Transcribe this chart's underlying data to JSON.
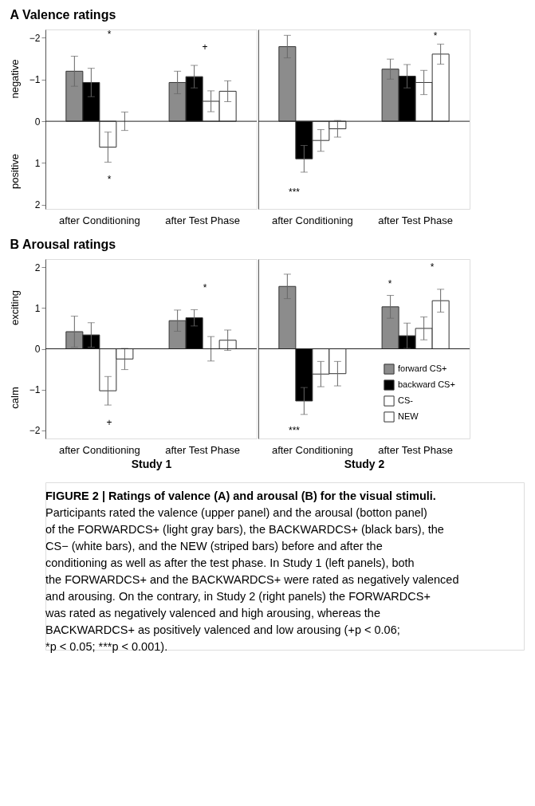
{
  "chart_data": [
    {
      "type": "bar",
      "title": "A Valence ratings",
      "categories": [
        "after Conditioning",
        "after Test Phase"
      ],
      "series": [
        {
          "color": "#8c8c8c",
          "values": [
            -1.2,
            -0.93
          ],
          "errors": [
            0.36,
            0.27
          ]
        },
        {
          "color": "#000000",
          "values": [
            -0.93,
            -1.07
          ],
          "errors": [
            0.34,
            0.27
          ]
        },
        {
          "color": "#ffffff",
          "values": [
            0.62,
            -0.48
          ],
          "errors": [
            0.36,
            0.25
          ]
        },
        {
          "color": "#ffffff",
          "values": [
            0.0,
            -0.72
          ],
          "errors": [
            0.22,
            0.25
          ]
        }
      ],
      "ylim": [
        2.1,
        -2.2
      ],
      "yticks": [
        -2,
        -1,
        0,
        1,
        2
      ],
      "ref_lines": [
        {
          "axis": "y",
          "value": 0
        }
      ],
      "annotations": [
        "negative",
        "positive",
        "*",
        "*",
        "+"
      ]
    },
    {
      "type": "bar",
      "categories": [
        "after Conditioning",
        "after Test Phase"
      ],
      "series": [
        {
          "color": "#8c8c8c",
          "values": [
            -1.79,
            -1.25
          ],
          "errors": [
            0.27,
            0.24
          ]
        },
        {
          "color": "#000000",
          "values": [
            0.9,
            -1.08
          ],
          "errors": [
            0.32,
            0.28
          ]
        },
        {
          "color": "#ffffff",
          "values": [
            0.46,
            -0.93
          ],
          "errors": [
            0.26,
            0.29
          ]
        },
        {
          "color": "#ffffff",
          "values": [
            0.18,
            -1.61
          ],
          "errors": [
            0.2,
            0.24
          ]
        }
      ],
      "ylim": [
        2.1,
        -2.2
      ],
      "yticks": [
        -2,
        -1,
        0,
        1,
        2
      ],
      "tick_labels": "x",
      "ref_lines": [
        {
          "axis": "y",
          "value": 0
        }
      ],
      "annotations": [
        "***",
        "*"
      ]
    },
    {
      "type": "bar",
      "title": "B Arousal ratings",
      "xlabel": "Study 1",
      "categories": [
        "after Conditioning",
        "after Test Phase"
      ],
      "series": [
        {
          "color": "#8c8c8c",
          "values": [
            0.42,
            0.69
          ],
          "errors": [
            0.38,
            0.26
          ]
        },
        {
          "color": "#000000",
          "values": [
            0.34,
            0.76
          ],
          "errors": [
            0.3,
            0.2
          ]
        },
        {
          "color": "#ffffff",
          "values": [
            -1.03,
            0.0
          ],
          "errors": [
            0.35,
            0.3
          ]
        },
        {
          "color": "#ffffff",
          "values": [
            -0.25,
            0.21
          ],
          "errors": [
            0.26,
            0.25
          ]
        }
      ],
      "ylim": [
        -2.2,
        2.2
      ],
      "yticks": [
        -2,
        -1,
        0,
        1,
        2
      ],
      "ref_lines": [
        {
          "axis": "y",
          "value": 0
        }
      ],
      "annotations": [
        "exciting",
        "calm",
        "+",
        "*"
      ]
    },
    {
      "type": "bar",
      "xlabel": "Study 2",
      "categories": [
        "after Conditioning",
        "after Test Phase"
      ],
      "series": [
        {
          "name": "forward CS+",
          "color": "#8c8c8c",
          "values": [
            1.53,
            1.03
          ],
          "errors": [
            0.3,
            0.28
          ]
        },
        {
          "name": "backward CS+",
          "color": "#000000",
          "values": [
            -1.28,
            0.32
          ],
          "errors": [
            0.33,
            0.31
          ]
        },
        {
          "name": "CS-",
          "color": "#ffffff",
          "values": [
            -0.62,
            0.5
          ],
          "errors": [
            0.31,
            0.28
          ]
        },
        {
          "name": "NEW",
          "color": "#ffffff",
          "values": [
            -0.61,
            1.18
          ],
          "errors": [
            0.3,
            0.28
          ]
        }
      ],
      "ylim": [
        -2.2,
        2.2
      ],
      "yticks": [
        -2,
        -1,
        0,
        1,
        2
      ],
      "tick_labels": "x",
      "legend": "bottom right",
      "ref_lines": [
        {
          "axis": "y",
          "value": 0
        }
      ],
      "annotations": [
        "***",
        "*",
        "*",
        "FIGURE 2 | Ratings of valence (A) and arousal (B) for the visual stimuli.",
        "Participants rated the valence (upper panel) and the arousal (botton panel)",
        "of the FORWARDCS+ (light gray bars), the BACKWARDCS+ (black bars), the",
        "CS− (white bars), and the NEW (striped bars) before and after the",
        "conditioning as well as after the test phase. In Study 1 (left panels), both",
        "the FORWARDCS+ and the BACKWARDCS+ were rated as negatively valenced",
        "and arousing. On the contrary, in Study 2 (right panels) the FORWARDCS+",
        "was rated as negatively valenced and high arousing, whereas the",
        "BACKWARDCS+ as positively valenced and low arousing (+p < 0.06;",
        "*p < 0.05; ***p < 0.001)."
      ]
    }
  ]
}
